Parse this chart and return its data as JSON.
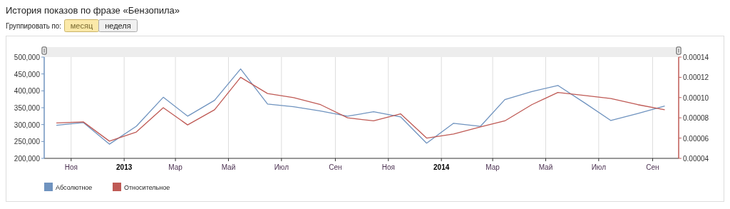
{
  "chart_data": {
    "type": "line",
    "title": "История показов по фразе «Бензопила»",
    "annotations": [
      "Группировать по:",
      "месяц",
      "неделя"
    ],
    "x": [
      "2012-10-15",
      "2012-11-15",
      "2012-12-15",
      "2013-01-15",
      "2013-02-15",
      "2013-03-15",
      "2013-04-15",
      "2013-05-15",
      "2013-06-15",
      "2013-07-15",
      "2013-08-15",
      "2013-09-15",
      "2013-10-15",
      "2013-11-15",
      "2013-12-15",
      "2014-01-15",
      "2014-02-15",
      "2014-03-15",
      "2014-04-15",
      "2014-05-15",
      "2014-06-15",
      "2014-07-15",
      "2014-08-15",
      "2014-09-15"
    ],
    "series": [
      {
        "name": "Абсолютное",
        "color": "#6f93bf",
        "values": [
          298000,
          306000,
          242000,
          295000,
          381000,
          325000,
          372000,
          465000,
          361000,
          353000,
          340000,
          325000,
          338000,
          323000,
          245000,
          304000,
          295000,
          374000,
          398000,
          416000,
          364000,
          312000,
          333000,
          355000
        ]
      },
      {
        "name": "Относительное",
        "color": "#bf5a55",
        "axis": "y2",
        "values": [
          7.5e-05,
          7.6e-05,
          5.7e-05,
          6.6e-05,
          9e-05,
          7.3e-05,
          8.8e-05,
          0.00012,
          0.000104,
          0.0001,
          9.3e-05,
          8e-05,
          7.7e-05,
          8.4e-05,
          6e-05,
          6.4e-05,
          7.1e-05,
          7.7e-05,
          9.3e-05,
          0.000105,
          0.000102,
          9.9e-05,
          9.3e-05,
          8.8e-05
        ]
      }
    ],
    "xlim": [
      "2012-10-01",
      "2014-10-01"
    ],
    "xticks": [
      {
        "value": "2012-11-01",
        "label": "Ноя"
      },
      {
        "value": "2013-01-01",
        "label": "2013"
      },
      {
        "value": "2013-03-01",
        "label": "Мар"
      },
      {
        "value": "2013-05-01",
        "label": "Май"
      },
      {
        "value": "2013-07-01",
        "label": "Июл"
      },
      {
        "value": "2013-09-01",
        "label": "Сен"
      },
      {
        "value": "2013-11-01",
        "label": "Ноя"
      },
      {
        "value": "2014-01-01",
        "label": "2014"
      },
      {
        "value": "2014-03-01",
        "label": "Мар"
      },
      {
        "value": "2014-05-01",
        "label": "Май"
      },
      {
        "value": "2014-07-01",
        "label": "Июл"
      },
      {
        "value": "2014-09-01",
        "label": "Сен"
      }
    ],
    "ylim": [
      200000,
      500000
    ],
    "yticks": [
      {
        "value": 200000,
        "label": "200,000"
      },
      {
        "value": 250000,
        "label": "250,000"
      },
      {
        "value": 300000,
        "label": "300,000"
      },
      {
        "value": 350000,
        "label": "350,000"
      },
      {
        "value": 400000,
        "label": "400,000"
      },
      {
        "value": 450000,
        "label": "450,000"
      },
      {
        "value": 500000,
        "label": "500,000"
      }
    ],
    "y2lim": [
      4e-05,
      0.00014
    ],
    "y2ticks": [
      {
        "value": 4e-05,
        "label": "0.00004"
      },
      {
        "value": 6e-05,
        "label": "0.00006"
      },
      {
        "value": 8e-05,
        "label": "0.00008"
      },
      {
        "value": 0.0001,
        "label": "0.00010"
      },
      {
        "value": 0.00012,
        "label": "0.00012"
      },
      {
        "value": 0.00014,
        "label": "0.00014"
      }
    ],
    "grid": "x",
    "legend": "bottom left",
    "marker": "none",
    "line_style": "solid"
  }
}
